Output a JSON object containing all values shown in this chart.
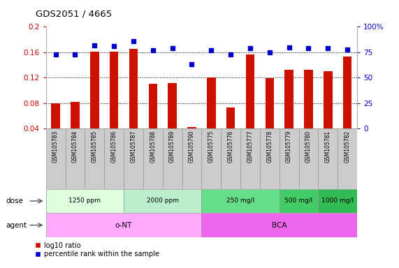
{
  "title": "GDS2051 / 4665",
  "samples": [
    "GSM105783",
    "GSM105784",
    "GSM105785",
    "GSM105786",
    "GSM105787",
    "GSM105788",
    "GSM105789",
    "GSM105790",
    "GSM105775",
    "GSM105776",
    "GSM105777",
    "GSM105778",
    "GSM105779",
    "GSM105780",
    "GSM105781",
    "GSM105782"
  ],
  "bar_values": [
    0.08,
    0.082,
    0.161,
    0.161,
    0.165,
    0.11,
    0.112,
    0.042,
    0.12,
    0.073,
    0.157,
    0.119,
    0.133,
    0.133,
    0.13,
    0.153
  ],
  "dot_values": [
    73,
    73,
    82,
    81,
    86,
    77,
    79,
    63,
    77,
    73,
    79,
    75,
    80,
    79,
    79,
    78
  ],
  "bar_color": "#cc1100",
  "dot_color": "#0000cc",
  "ylim_left": [
    0.04,
    0.2
  ],
  "ylim_right": [
    0,
    100
  ],
  "yticks_left": [
    0.04,
    0.08,
    0.12,
    0.16,
    0.2
  ],
  "yticks_right": [
    0,
    25,
    50,
    75,
    100
  ],
  "ytick_labels_right": [
    "0",
    "25",
    "50",
    "75",
    "100%"
  ],
  "dose_groups": [
    {
      "label": "1250 ppm",
      "start": 0,
      "end": 4,
      "color": "#ddffdd"
    },
    {
      "label": "2000 ppm",
      "start": 4,
      "end": 8,
      "color": "#bbeecc"
    },
    {
      "label": "250 mg/l",
      "start": 8,
      "end": 12,
      "color": "#66dd88"
    },
    {
      "label": "500 mg/l",
      "start": 12,
      "end": 14,
      "color": "#44cc66"
    },
    {
      "label": "1000 mg/l",
      "start": 14,
      "end": 16,
      "color": "#33bb55"
    }
  ],
  "agent_groups": [
    {
      "label": "o-NT",
      "start": 0,
      "end": 8,
      "color": "#ffaaff"
    },
    {
      "label": "BCA",
      "start": 8,
      "end": 16,
      "color": "#ee66ee"
    }
  ],
  "legend_bar_label": "log10 ratio",
  "legend_dot_label": "percentile rank within the sample",
  "dose_label": "dose",
  "agent_label": "agent",
  "label_area_color": "#cccccc",
  "bg_color": "#ffffff"
}
